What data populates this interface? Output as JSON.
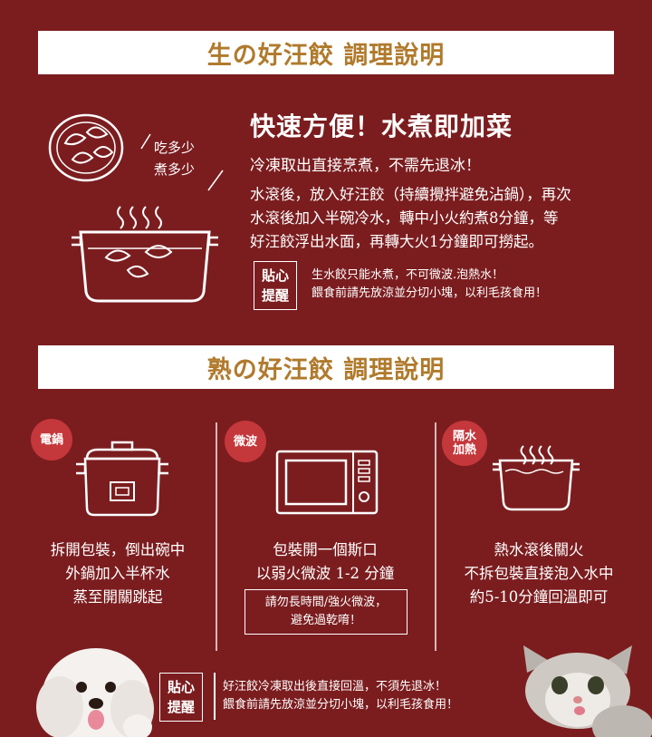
{
  "raw_section": {
    "title": "生の好汪餃 調理說明",
    "tagline_1": "吃多少",
    "tagline_2": "煮多少",
    "heading": "快速方便！水煮即加菜",
    "subheading": "冷凍取出直接烹煮，不需先退冰！",
    "body_lines": [
      "水滾後，放入好汪餃（持續攪拌避免沾鍋），再次",
      "水滾後加入半碗冷水，轉中小火約煮8分鐘，等",
      "好汪餃浮出水面，再轉大火1分鐘即可撈起。"
    ],
    "tip_label_1": "貼心",
    "tip_label_2": "提醒",
    "tip_lines": [
      "生水餃只能水煮，不可微波.泡熱水！",
      "餵食前請先放涼並分切小塊，以利毛孩食用！"
    ]
  },
  "cooked_section": {
    "title": "熟の好汪餃 調理說明",
    "methods": [
      {
        "badge_1": "電鍋",
        "badge_2": "",
        "icon": "rice-cooker-icon",
        "lines": [
          "拆開包裝，倒出碗中",
          "外鍋加入半杯水",
          "蒸至開關跳起"
        ]
      },
      {
        "badge_1": "微波",
        "badge_2": "",
        "icon": "microwave-icon",
        "lines": [
          "包裝開一個斯口",
          "以弱火微波 1-2 分鐘"
        ],
        "warning_lines": [
          "請勿長時間/強火微波，",
          "避免過乾唷！"
        ]
      },
      {
        "badge_1": "隔水",
        "badge_2": "加熱",
        "icon": "hot-water-pot-icon",
        "lines": [
          "熱水滾後關火",
          "不拆包裝直接泡入水中",
          "約5-10分鐘回溫即可"
        ]
      }
    ],
    "tip_label_1": "貼心",
    "tip_label_2": "提醒",
    "tip_lines": [
      "好汪餃冷凍取出後直接回溫，不須先退冰！",
      "餵食前請先放涼並分切小塊，以利毛孩食用！"
    ]
  },
  "colors": {
    "background": "#7b1d1f",
    "title_gold": "#b07a2c",
    "badge_red": "#c4373b"
  }
}
